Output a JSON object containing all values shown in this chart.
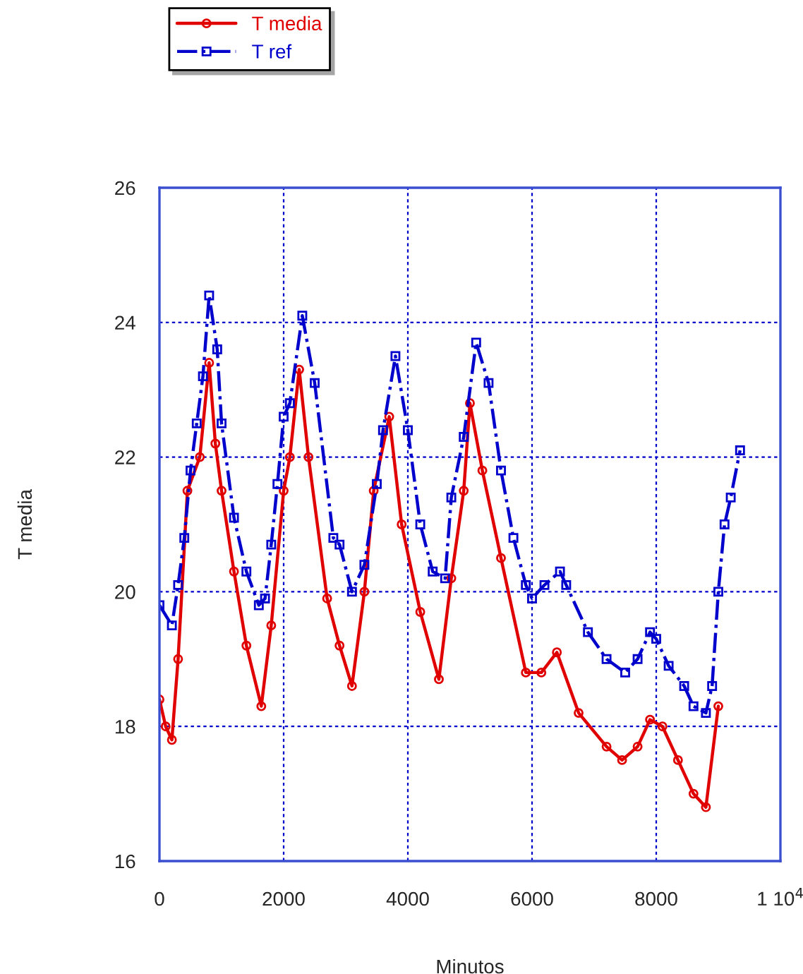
{
  "chart_data": {
    "type": "line",
    "xlabel": "Minutos",
    "ylabel": "T media",
    "xlim": [
      0,
      10000
    ],
    "xticks": [
      0,
      2000,
      4000,
      6000,
      8000,
      {
        "value": 10000,
        "label": "1 10$^{4}$"
      }
    ],
    "ylim": [
      16,
      26
    ],
    "yticks": [
      16,
      18,
      20,
      22,
      24,
      26
    ],
    "grid": true,
    "legend": "top left",
    "series": [
      {
        "name": "T media",
        "color": "#e00000",
        "marker": "circle",
        "line_style": "solid",
        "x": [
          0,
          100,
          200,
          300,
          450,
          650,
          800,
          900,
          1000,
          1200,
          1400,
          1640,
          1800,
          2000,
          2100,
          2250,
          2400,
          2700,
          2900,
          3100,
          3300,
          3450,
          3700,
          3900,
          4200,
          4500,
          4700,
          4900,
          5000,
          5200,
          5500,
          5900,
          6150,
          6400,
          6750,
          7200,
          7450,
          7700,
          7900,
          8100,
          8350,
          8600,
          8800,
          9000
        ],
        "values": [
          18.4,
          18.0,
          17.8,
          19.0,
          21.5,
          22.0,
          23.4,
          22.2,
          21.5,
          20.3,
          19.2,
          18.3,
          19.5,
          21.5,
          22.0,
          23.3,
          22.0,
          19.9,
          19.2,
          18.6,
          20.0,
          21.5,
          22.6,
          21.0,
          19.7,
          18.7,
          20.2,
          21.5,
          22.8,
          21.8,
          20.5,
          18.8,
          18.8,
          19.1,
          18.2,
          17.7,
          17.5,
          17.7,
          18.1,
          18.0,
          17.5,
          17.0,
          16.8,
          18.3
        ]
      },
      {
        "name": "T ref",
        "color": "#0000cc",
        "marker": "square",
        "line_style": "dashed",
        "x": [
          0,
          200,
          300,
          400,
          500,
          600,
          700,
          800,
          930,
          1000,
          1200,
          1400,
          1600,
          1700,
          1800,
          1900,
          2000,
          2100,
          2300,
          2500,
          2800,
          2900,
          3100,
          3300,
          3500,
          3600,
          3800,
          4000,
          4200,
          4400,
          4600,
          4700,
          4900,
          5100,
          5300,
          5500,
          5700,
          5900,
          6000,
          6200,
          6450,
          6550,
          6900,
          7200,
          7500,
          7700,
          7900,
          8000,
          8200,
          8450,
          8600,
          8800,
          8900,
          9000,
          9100,
          9200,
          9350
        ],
        "values": [
          19.8,
          19.5,
          20.1,
          20.8,
          21.8,
          22.5,
          23.2,
          24.4,
          23.6,
          22.5,
          21.1,
          20.3,
          19.8,
          19.9,
          20.7,
          21.6,
          22.6,
          22.8,
          24.1,
          23.1,
          20.8,
          20.7,
          20.0,
          20.4,
          21.6,
          22.4,
          23.5,
          22.4,
          21.0,
          20.3,
          20.2,
          21.4,
          22.3,
          23.7,
          23.1,
          21.8,
          20.8,
          20.1,
          19.9,
          20.1,
          20.3,
          20.1,
          19.4,
          19.0,
          18.8,
          19.0,
          19.4,
          19.3,
          18.9,
          18.6,
          18.3,
          18.2,
          18.6,
          20.0,
          21.0,
          21.4,
          22.1
        ]
      }
    ]
  }
}
